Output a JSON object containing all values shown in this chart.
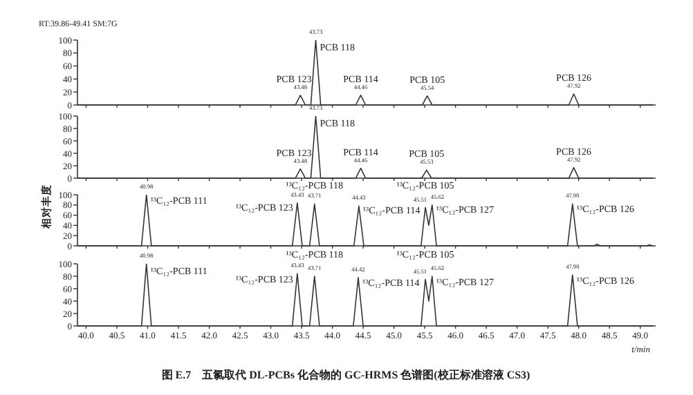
{
  "chart_data": [
    {
      "type": "line",
      "subtitle": "RT:39.86-49.41 SM:7G",
      "series": [
        {
          "color": "#333333",
          "x": [
            39.86,
            43.4,
            43.48,
            43.56,
            43.65,
            43.73,
            43.81,
            44.38,
            44.46,
            44.54,
            45.46,
            45.54,
            45.62,
            47.84,
            47.92,
            48.0,
            49.2
          ],
          "values": [
            0,
            0,
            15,
            0,
            0,
            100,
            0,
            0,
            15,
            0,
            0,
            14,
            0,
            0,
            17,
            0,
            0
          ]
        }
      ],
      "xlim": [
        39.86,
        49.25
      ],
      "xticks": [
        {
          "value": 40,
          "label": null
        },
        {
          "value": 40.5,
          "label": null
        },
        {
          "value": 41,
          "label": null
        },
        {
          "value": 41.5,
          "label": null
        },
        {
          "value": 42,
          "label": null
        },
        {
          "value": 42.5,
          "label": null
        },
        {
          "value": 43,
          "label": null
        },
        {
          "value": 43.5,
          "label": null
        },
        {
          "value": 44,
          "label": null
        },
        {
          "value": 44.5,
          "label": null
        },
        {
          "value": 45,
          "label": null
        },
        {
          "value": 45.5,
          "label": null
        },
        {
          "value": 46,
          "label": null
        },
        {
          "value": 46.5,
          "label": null
        },
        {
          "value": 47,
          "label": null
        },
        {
          "value": 47.5,
          "label": null
        },
        {
          "value": 48,
          "label": null
        },
        {
          "value": 48.5,
          "label": null
        },
        {
          "value": 49,
          "label": null
        }
      ],
      "ylim": [
        0,
        100
      ],
      "yticks": [
        0,
        20,
        40,
        60,
        80,
        100
      ],
      "tick_labels": "y",
      "annotations": [
        {
          "text": "43.48",
          "x": 43.48,
          "y": 15
        },
        {
          "text": "43.73",
          "x": 43.73,
          "y": 100
        },
        {
          "text": "44.46",
          "x": 44.46,
          "y": 15
        },
        {
          "text": "45.54",
          "x": 45.54,
          "y": 14
        },
        {
          "text": "47.92",
          "x": 47.92,
          "y": 17
        },
        {
          "text": "PCB 123",
          "x": 43.48,
          "y": 15
        },
        {
          "text": "PCB 118",
          "x": 43.73,
          "y": 100
        },
        {
          "text": "PCB 114",
          "x": 44.46,
          "y": 15
        },
        {
          "text": "PCB 105",
          "x": 45.54,
          "y": 14
        },
        {
          "text": "PCB 126",
          "x": 47.92,
          "y": 17
        }
      ]
    },
    {
      "type": "line",
      "series": [
        {
          "color": "#333333",
          "x": [
            39.86,
            43.4,
            43.48,
            43.56,
            43.65,
            43.73,
            43.81,
            44.38,
            44.46,
            44.54,
            45.45,
            45.53,
            45.61,
            47.84,
            47.92,
            48.0,
            49.2
          ],
          "values": [
            0,
            0,
            15,
            0,
            0,
            100,
            0,
            0,
            16,
            0,
            0,
            13,
            0,
            0,
            17,
            0,
            0
          ]
        }
      ],
      "xlim": [
        39.86,
        49.25
      ],
      "xticks": [
        {
          "value": 40,
          "label": null
        },
        {
          "value": 40.5,
          "label": null
        },
        {
          "value": 41,
          "label": null
        },
        {
          "value": 41.5,
          "label": null
        },
        {
          "value": 42,
          "label": null
        },
        {
          "value": 42.5,
          "label": null
        },
        {
          "value": 43,
          "label": null
        },
        {
          "value": 43.5,
          "label": null
        },
        {
          "value": 44,
          "label": null
        },
        {
          "value": 44.5,
          "label": null
        },
        {
          "value": 45,
          "label": null
        },
        {
          "value": 45.5,
          "label": null
        },
        {
          "value": 46,
          "label": null
        },
        {
          "value": 46.5,
          "label": null
        },
        {
          "value": 47,
          "label": null
        },
        {
          "value": 47.5,
          "label": null
        },
        {
          "value": 48,
          "label": null
        },
        {
          "value": 48.5,
          "label": null
        },
        {
          "value": 49,
          "label": null
        }
      ],
      "ylim": [
        0,
        100
      ],
      "yticks": [
        0,
        20,
        40,
        60,
        80,
        100
      ],
      "tick_labels": "y",
      "annotations": [
        {
          "text": "43.48",
          "x": 43.48,
          "y": 15
        },
        {
          "text": "43.73",
          "x": 43.73,
          "y": 100
        },
        {
          "text": "44.46",
          "x": 44.46,
          "y": 16
        },
        {
          "text": "45.53",
          "x": 45.53,
          "y": 13
        },
        {
          "text": "47.92",
          "x": 47.92,
          "y": 17
        },
        {
          "text": "PCB 123",
          "x": 43.48,
          "y": 15
        },
        {
          "text": "PCB 118",
          "x": 43.73,
          "y": 100
        },
        {
          "text": "PCB 114",
          "x": 44.46,
          "y": 16
        },
        {
          "text": "PCB 105",
          "x": 45.53,
          "y": 13
        },
        {
          "text": "PCB 126",
          "x": 47.92,
          "y": 17
        }
      ]
    },
    {
      "type": "line",
      "ylabel": "相对丰度",
      "series": [
        {
          "color": "#333333",
          "x": [
            39.86,
            40.9,
            40.98,
            41.06,
            43.35,
            43.43,
            43.51,
            43.63,
            43.71,
            43.79,
            44.35,
            44.43,
            44.51,
            45.44,
            45.51,
            45.565,
            45.62,
            45.69,
            47.82,
            47.9,
            47.98,
            48.25,
            48.3,
            48.35,
            49.1,
            49.15,
            49.2
          ],
          "values": [
            0,
            0,
            100,
            0,
            0,
            84,
            0,
            0,
            82,
            0,
            0,
            78,
            0,
            0,
            75,
            40,
            80,
            0,
            0,
            82,
            0,
            0,
            3,
            0,
            0,
            2,
            0
          ]
        }
      ],
      "xlim": [
        39.86,
        49.25
      ],
      "xticks": [
        {
          "value": 40,
          "label": null
        },
        {
          "value": 40.5,
          "label": null
        },
        {
          "value": 41,
          "label": null
        },
        {
          "value": 41.5,
          "label": null
        },
        {
          "value": 42,
          "label": null
        },
        {
          "value": 42.5,
          "label": null
        },
        {
          "value": 43,
          "label": null
        },
        {
          "value": 43.5,
          "label": null
        },
        {
          "value": 44,
          "label": null
        },
        {
          "value": 44.5,
          "label": null
        },
        {
          "value": 45,
          "label": null
        },
        {
          "value": 45.5,
          "label": null
        },
        {
          "value": 46,
          "label": null
        },
        {
          "value": 46.5,
          "label": null
        },
        {
          "value": 47,
          "label": null
        },
        {
          "value": 47.5,
          "label": null
        },
        {
          "value": 48,
          "label": null
        },
        {
          "value": 48.5,
          "label": null
        },
        {
          "value": 49,
          "label": null
        }
      ],
      "ylim": [
        0,
        100
      ],
      "yticks": [
        0,
        20,
        40,
        60,
        80,
        100
      ],
      "tick_labels": "y",
      "annotations": [
        {
          "text": "40.98",
          "x": 40.98,
          "y": 100
        },
        {
          "text": "43.43",
          "x": 43.43,
          "y": 84
        },
        {
          "text": "43.71",
          "x": 43.71,
          "y": 82
        },
        {
          "text": "44.43",
          "x": 44.43,
          "y": 78
        },
        {
          "text": "45.51",
          "x": 45.51,
          "y": 75
        },
        {
          "text": "45.62",
          "x": 45.62,
          "y": 80
        },
        {
          "text": "47.90",
          "x": 47.9,
          "y": 82
        },
        {
          "text": "¹³C₁₂-PCB 111",
          "x": 40.98,
          "y": 100
        },
        {
          "text": "¹³C₁₂-PCB 123",
          "x": 43.43,
          "y": 84
        },
        {
          "text": "¹³C₁₂-PCB 118",
          "x": 43.71,
          "y": 82
        },
        {
          "text": "¹³C₁₂-PCB 114",
          "x": 44.43,
          "y": 78
        },
        {
          "text": "¹³C₁₂-PCB 105",
          "x": 45.51,
          "y": 75
        },
        {
          "text": "¹³C₁₂-PCB 127",
          "x": 45.62,
          "y": 80
        },
        {
          "text": "¹³C₁₂-PCB 126",
          "x": 47.9,
          "y": 82
        }
      ]
    },
    {
      "type": "line",
      "xlabel": "t/min",
      "series": [
        {
          "color": "#333333",
          "x": [
            39.86,
            40.9,
            40.98,
            41.06,
            43.35,
            43.43,
            43.51,
            43.63,
            43.71,
            43.79,
            44.34,
            44.42,
            44.5,
            45.44,
            45.51,
            45.565,
            45.62,
            45.69,
            47.82,
            47.9,
            47.98,
            49.2
          ],
          "values": [
            0,
            0,
            100,
            0,
            0,
            84,
            0,
            0,
            80,
            0,
            0,
            78,
            0,
            0,
            75,
            40,
            80,
            0,
            0,
            82,
            0,
            0
          ]
        }
      ],
      "xlim": [
        39.86,
        49.25
      ],
      "xticks": [
        {
          "value": 40,
          "label": "40.0"
        },
        40.5,
        {
          "value": 41,
          "label": "41.0"
        },
        41.5,
        {
          "value": 42,
          "label": "42.0"
        },
        42.5,
        {
          "value": 43,
          "label": "43.0"
        },
        43.5,
        {
          "value": 44,
          "label": "44.0"
        },
        44.5,
        {
          "value": 45,
          "label": "45.0"
        },
        45.5,
        {
          "value": 46,
          "label": "46.0"
        },
        46.5,
        {
          "value": 47,
          "label": "47.0"
        },
        47.5,
        {
          "value": 48,
          "label": "48.0"
        },
        48.5,
        {
          "value": 49,
          "label": "49.0"
        }
      ],
      "ylim": [
        0,
        100
      ],
      "yticks": [
        0,
        20,
        40,
        60,
        80,
        100
      ],
      "annotations": [
        {
          "text": "40.98",
          "x": 40.98,
          "y": 100
        },
        {
          "text": "43.43",
          "x": 43.43,
          "y": 84
        },
        {
          "text": "43.71",
          "x": 43.71,
          "y": 80
        },
        {
          "text": "44.42",
          "x": 44.42,
          "y": 78
        },
        {
          "text": "45.51",
          "x": 45.51,
          "y": 75
        },
        {
          "text": "45.62",
          "x": 45.62,
          "y": 80
        },
        {
          "text": "47.90",
          "x": 47.9,
          "y": 82
        },
        {
          "text": "¹³C₁₂-PCB 111",
          "x": 40.98,
          "y": 100
        },
        {
          "text": "¹³C₁₂-PCB 123",
          "x": 43.43,
          "y": 84
        },
        {
          "text": "¹³C₁₂-PCB 118",
          "x": 43.71,
          "y": 80
        },
        {
          "text": "¹³C₁₂-PCB 114",
          "x": 44.42,
          "y": 78
        },
        {
          "text": "¹³C₁₂-PCB 105",
          "x": 45.51,
          "y": 75
        },
        {
          "text": "¹³C₁₂-PCB 127",
          "x": 45.62,
          "y": 80
        },
        {
          "text": "¹³C₁₂-PCB 126",
          "x": 47.9,
          "y": 82
        },
        "图 E.7　五氯取代 DL-PCBs 化合物的 GC-HRMS 色谱图(校正标准溶液 CS3)"
      ]
    }
  ]
}
